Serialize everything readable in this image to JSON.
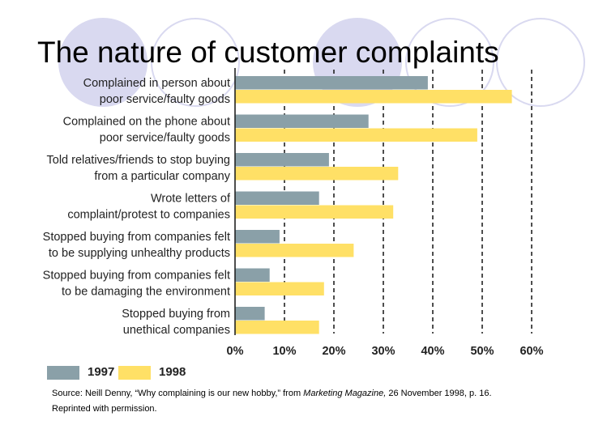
{
  "title": "The nature of customer complaints",
  "chart_data": {
    "type": "bar",
    "orientation": "horizontal",
    "categories": [
      [
        "Complained in person about",
        "poor service/faulty goods"
      ],
      [
        "Complained on the phone about",
        "poor service/faulty goods"
      ],
      [
        "Told relatives/friends to stop buying",
        "from a particular company"
      ],
      [
        "Wrote letters of",
        "complaint/protest to companies"
      ],
      [
        "Stopped buying from companies felt",
        "to be supplying unhealthy products"
      ],
      [
        "Stopped buying from companies felt",
        "to be damaging the environment"
      ],
      [
        "Stopped buying from",
        "unethical companies"
      ]
    ],
    "series": [
      {
        "name": "1997",
        "color": "#8aa0a8",
        "values": [
          39,
          27,
          19,
          17,
          9,
          7,
          6
        ]
      },
      {
        "name": "1998",
        "color": "#ffe066",
        "values": [
          56,
          49,
          33,
          32,
          24,
          18,
          17
        ]
      }
    ],
    "xlim": [
      0,
      60
    ],
    "ticks": [
      "0%",
      "10%",
      "20%",
      "30%",
      "40%",
      "50%",
      "60%"
    ],
    "tick_values": [
      0,
      10,
      20,
      30,
      40,
      50,
      60
    ],
    "grid": "dashed vertical",
    "legend_position": "bottom-left"
  },
  "source": {
    "prefix": "Source: Neill Denny, “Why complaining is our new hobby,” from ",
    "publication": "Marketing Magazine,",
    "suffix": " 26 November 1998, p. 16.",
    "line2": "Reprinted with permission."
  }
}
